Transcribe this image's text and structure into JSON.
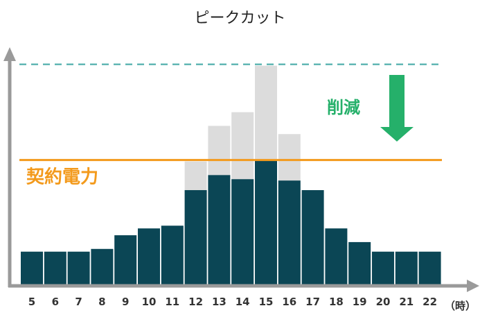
{
  "title": "ピークカット",
  "chart_data": {
    "type": "bar",
    "title": "ピークカット",
    "x_unit": "（時）",
    "categories": [
      "5",
      "6",
      "7",
      "8",
      "9",
      "10",
      "11",
      "12",
      "13",
      "14",
      "15",
      "16",
      "17",
      "18",
      "19",
      "20",
      "21",
      "22"
    ],
    "series": [
      {
        "role": "after_cut",
        "values": [
          2.4,
          2.4,
          2.4,
          2.6,
          3.6,
          4.1,
          4.3,
          6.9,
          8.0,
          7.7,
          9.1,
          7.6,
          6.9,
          4.1,
          3.1,
          2.4,
          2.4,
          2.4
        ]
      },
      {
        "role": "before_cut",
        "values": [
          2.4,
          2.4,
          2.4,
          2.6,
          3.6,
          4.1,
          4.3,
          9.0,
          11.6,
          12.6,
          16.0,
          11.0,
          6.9,
          4.1,
          3.1,
          2.4,
          2.4,
          2.4
        ]
      }
    ],
    "ylim": [
      0,
      17
    ],
    "contract_power": {
      "label": "契約電力",
      "value": 9.1
    },
    "peak_line": {
      "value": 16.0
    },
    "reduction": {
      "label": "削減"
    },
    "grid": false,
    "colors": {
      "after_cut": "#0b4655",
      "before_cut": "#dcdcdc",
      "contract_line": "#f39a1c",
      "peak_line": "#62b7b4",
      "reduction": "#25b06a",
      "axis": "#9a9a9a"
    }
  }
}
